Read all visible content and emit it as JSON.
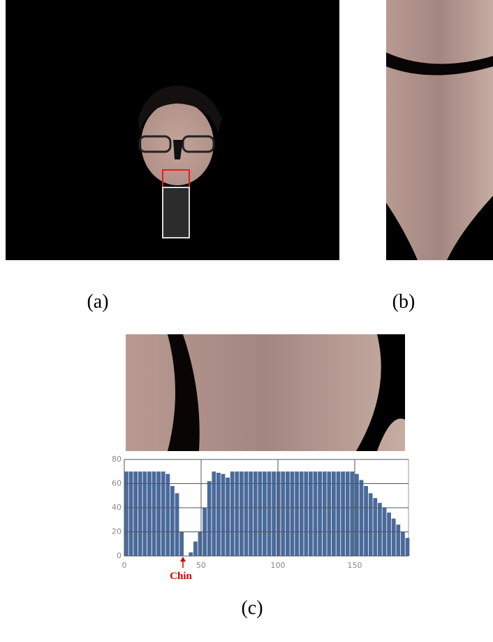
{
  "panels": {
    "a": "(a)",
    "b": "(b)",
    "c": "(c)"
  },
  "chart_data": {
    "type": "bar",
    "annotation": "Chin",
    "x": [
      0,
      3,
      6,
      9,
      12,
      15,
      18,
      21,
      24,
      27,
      30,
      33,
      36,
      39,
      42,
      45,
      48,
      51,
      54,
      57,
      60,
      63,
      66,
      69,
      72,
      75,
      78,
      81,
      84,
      87,
      90,
      93,
      96,
      99,
      102,
      105,
      108,
      111,
      114,
      117,
      120,
      123,
      126,
      129,
      132,
      135,
      138,
      141,
      144,
      147,
      150,
      153,
      156,
      159,
      162,
      165,
      168,
      171,
      174,
      177,
      180,
      183
    ],
    "values": [
      70,
      70,
      70,
      70,
      70,
      70,
      70,
      70,
      70,
      68,
      58,
      52,
      20,
      0,
      3,
      12,
      20,
      40,
      62,
      70,
      69,
      68,
      65,
      70,
      70,
      70,
      70,
      70,
      70,
      70,
      70,
      70,
      70,
      70,
      70,
      70,
      70,
      70,
      70,
      70,
      70,
      70,
      70,
      70,
      70,
      70,
      70,
      70,
      70,
      70,
      68,
      63,
      58,
      52,
      48,
      44,
      40,
      36,
      31,
      26,
      20,
      15
    ],
    "color": "#4a6a9a",
    "xlim": [
      0,
      185
    ],
    "ylim": [
      0,
      80
    ],
    "xticks": [
      0,
      50,
      100,
      150
    ],
    "yticks": [
      0,
      20,
      40,
      60,
      80
    ],
    "grid": true
  }
}
